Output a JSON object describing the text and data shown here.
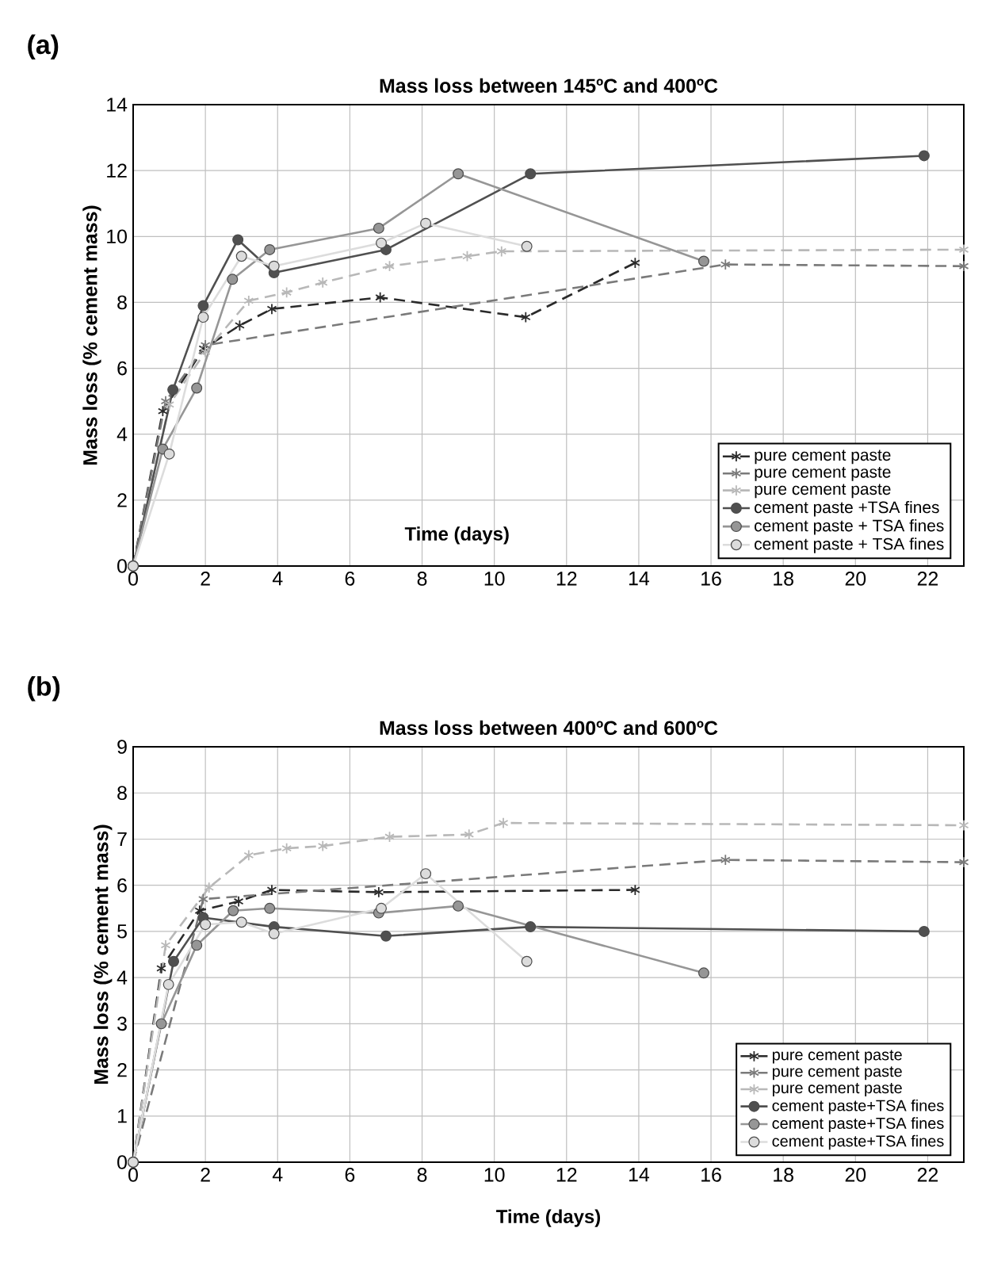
{
  "chart_data": [
    {
      "type": "line",
      "title": "Mass loss between 145ºC and 400ºC",
      "xlabel": "Time (days)",
      "ylabel": "Mass loss (% cement mass)",
      "annotations": [
        "(a)"
      ],
      "xlim": [
        0,
        23
      ],
      "ylim": [
        0,
        14
      ],
      "xticks": [
        0,
        2,
        4,
        6,
        8,
        10,
        12,
        14,
        16,
        18,
        20,
        22
      ],
      "yticks": [
        0,
        2,
        4,
        6,
        8,
        10,
        12,
        14
      ],
      "grid": true,
      "legend": "bottom right",
      "series": [
        {
          "name": "pure cement paste",
          "color": "#2a2a2a",
          "marker": "cross",
          "line_style": "dashed",
          "x": [
            0,
            0.82,
            1.95,
            2.95,
            3.84,
            6.84,
            10.87,
            13.9
          ],
          "values": [
            0,
            4.7,
            6.6,
            7.3,
            7.8,
            8.15,
            7.55,
            9.2
          ]
        },
        {
          "name": "pure cement paste",
          "color": "#7a7a7a",
          "marker": "cross",
          "line_style": "dashed",
          "x": [
            0,
            0.9,
            2.0,
            16.4,
            23
          ],
          "values": [
            0,
            5.0,
            6.7,
            9.15,
            9.1
          ]
        },
        {
          "name": "pure cement paste",
          "color": "#b8b8b8",
          "marker": "cross",
          "line_style": "dashed",
          "x": [
            0,
            1.0,
            2.0,
            3.2,
            4.25,
            5.25,
            7.1,
            9.25,
            10.2,
            23
          ],
          "values": [
            0,
            4.9,
            6.5,
            8.05,
            8.3,
            8.6,
            9.1,
            9.4,
            9.55,
            9.6
          ]
        },
        {
          "name": "cement paste +TSA fines",
          "color": "#505050",
          "marker": "circle",
          "line_style": "solid",
          "x": [
            0,
            1.1,
            1.94,
            2.9,
            3.9,
            7.0,
            11.0,
            21.9
          ],
          "values": [
            0,
            5.35,
            7.9,
            9.9,
            8.9,
            9.6,
            11.9,
            12.45
          ]
        },
        {
          "name": "cement paste + TSA fines",
          "color": "#969696",
          "marker": "circle",
          "line_style": "solid",
          "x": [
            0,
            0.82,
            1.76,
            2.75,
            3.78,
            6.8,
            9.0,
            15.8
          ],
          "values": [
            0,
            3.55,
            5.4,
            8.7,
            9.6,
            10.25,
            11.9,
            9.25
          ]
        },
        {
          "name": "cement paste + TSA fines",
          "color": "#dcdcdc",
          "marker": "circle",
          "line_style": "solid",
          "x": [
            0,
            1.0,
            1.94,
            3.0,
            3.9,
            6.87,
            8.1,
            10.9
          ],
          "values": [
            0,
            3.4,
            7.55,
            9.4,
            9.1,
            9.8,
            10.4,
            9.7
          ]
        }
      ]
    },
    {
      "type": "line",
      "title": "Mass loss between 400ºC and 600ºC",
      "xlabel": "Time (days)",
      "ylabel": "Mass loss (% cement mass)",
      "annotations": [
        "(b)"
      ],
      "xlim": [
        0,
        23
      ],
      "ylim": [
        0,
        9
      ],
      "xticks": [
        0,
        2,
        4,
        6,
        8,
        10,
        12,
        14,
        16,
        18,
        20,
        22
      ],
      "yticks": [
        0,
        1,
        2,
        3,
        4,
        5,
        6,
        7,
        8,
        9
      ],
      "grid": true,
      "legend": "bottom right",
      "series": [
        {
          "name": "pure cement paste",
          "color": "#2a2a2a",
          "marker": "cross",
          "line_style": "dashed",
          "x": [
            0,
            0.78,
            1.84,
            2.92,
            3.84,
            6.8,
            13.9
          ],
          "values": [
            0,
            4.2,
            5.45,
            5.65,
            5.9,
            5.85,
            5.9
          ]
        },
        {
          "name": "pure cement paste",
          "color": "#7a7a7a",
          "marker": "cross",
          "line_style": "dashed",
          "x": [
            0,
            1.1,
            1.94,
            16.4,
            23
          ],
          "values": [
            0,
            null,
            5.7,
            6.55,
            6.5
          ]
        },
        {
          "name": "pure cement paste",
          "color": "#b8b8b8",
          "marker": "cross",
          "line_style": "dashed",
          "x": [
            0,
            0.9,
            2.1,
            3.2,
            4.25,
            5.25,
            7.1,
            9.3,
            10.25,
            23
          ],
          "values": [
            0,
            4.7,
            5.95,
            6.65,
            6.8,
            6.85,
            7.05,
            7.1,
            7.35,
            7.3
          ]
        },
        {
          "name": "cement paste+TSA fines",
          "color": "#505050",
          "marker": "circle",
          "line_style": "solid",
          "x": [
            0,
            1.12,
            1.94,
            3.9,
            7.0,
            11.0,
            21.9
          ],
          "values": [
            0,
            4.35,
            5.3,
            5.1,
            4.9,
            5.1,
            5.0
          ]
        },
        {
          "name": "cement paste+TSA fines",
          "color": "#969696",
          "marker": "circle",
          "line_style": "solid",
          "x": [
            0,
            0.78,
            1.76,
            2.77,
            3.78,
            6.8,
            9.0,
            15.8
          ],
          "values": [
            0,
            3.0,
            4.7,
            5.45,
            5.5,
            5.4,
            5.55,
            4.1
          ]
        },
        {
          "name": "cement paste+TSA fines",
          "color": "#dcdcdc",
          "marker": "circle",
          "line_style": "solid",
          "x": [
            0,
            0.98,
            2.0,
            3.0,
            3.9,
            6.87,
            8.1,
            10.9
          ],
          "values": [
            0,
            3.85,
            5.15,
            5.2,
            4.95,
            5.5,
            6.25,
            4.35
          ]
        }
      ]
    }
  ]
}
